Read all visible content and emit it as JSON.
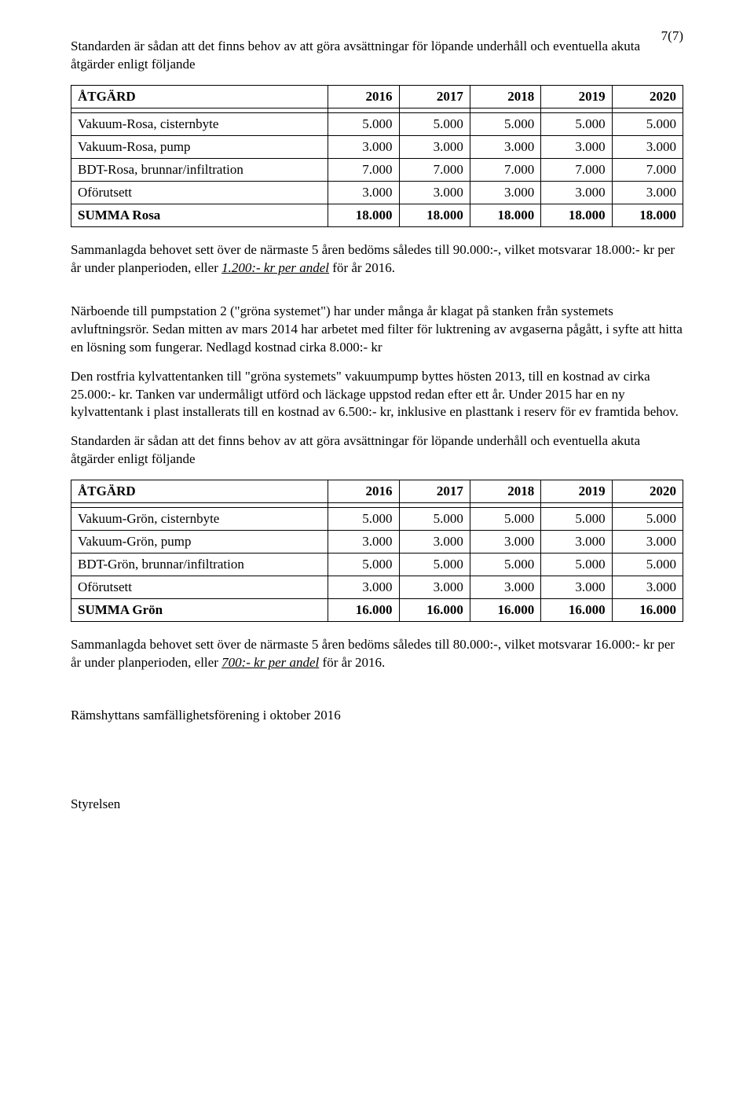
{
  "page_number": "7(7)",
  "intro1": "Standarden är sådan att det finns behov av att göra avsättningar för löpande underhåll och eventuella akuta åtgärder enligt följande",
  "table1": {
    "header_label": "ÅTGÄRD",
    "years": [
      "2016",
      "2017",
      "2018",
      "2019",
      "2020"
    ],
    "rows": [
      {
        "label": "Vakuum-Rosa, cisternbyte",
        "vals": [
          "5.000",
          "5.000",
          "5.000",
          "5.000",
          "5.000"
        ]
      },
      {
        "label": "Vakuum-Rosa, pump",
        "vals": [
          "3.000",
          "3.000",
          "3.000",
          "3.000",
          "3.000"
        ]
      },
      {
        "label": "BDT-Rosa, brunnar/infiltration",
        "vals": [
          "7.000",
          "7.000",
          "7.000",
          "7.000",
          "7.000"
        ]
      },
      {
        "label": "Oförutsett",
        "vals": [
          "3.000",
          "3.000",
          "3.000",
          "3.000",
          "3.000"
        ]
      }
    ],
    "sum_label": "SUMMA Rosa",
    "sum_vals": [
      "18.000",
      "18.000",
      "18.000",
      "18.000",
      "18.000"
    ]
  },
  "summary1_a": "Sammanlagda behovet sett över de närmaste 5 åren bedöms således till 90.000:-, vilket motsvarar 18.000:- kr per år under planperioden, eller ",
  "summary1_u": "1.200:- kr per andel",
  "summary1_b": " för år 2016.",
  "para_narboende": "Närboende till pumpstation 2  (\"gröna systemet\") har under många år klagat på stanken från systemets avluftningsrör. Sedan mitten av mars 2014 har arbetet med filter för luktrening av avgaserna pågått, i syfte att hitta en lösning som fungerar. Nedlagd kostnad cirka  8.000:- kr",
  "para_rost": "Den rostfria kylvattentanken till \"gröna systemets\" vakuumpump byttes hösten 2013, till en kostnad av cirka 25.000:- kr. Tanken var undermåligt utförd och läckage uppstod redan efter ett år. Under 2015 har en ny kylvattentank i plast installerats till en kostnad av 6.500:- kr, inklusive en plasttank i reserv för ev framtida behov.",
  "intro2": "Standarden är sådan att det finns behov av att göra avsättningar för löpande underhåll och eventuella akuta åtgärder enligt följande",
  "table2": {
    "header_label": "ÅTGÄRD",
    "years": [
      "2016",
      "2017",
      "2018",
      "2019",
      "2020"
    ],
    "rows": [
      {
        "label": "Vakuum-Grön, cisternbyte",
        "vals": [
          "5.000",
          "5.000",
          "5.000",
          "5.000",
          "5.000"
        ]
      },
      {
        "label": "Vakuum-Grön, pump",
        "vals": [
          "3.000",
          "3.000",
          "3.000",
          "3.000",
          "3.000"
        ]
      },
      {
        "label": "BDT-Grön, brunnar/infiltration",
        "vals": [
          "5.000",
          "5.000",
          "5.000",
          "5.000",
          "5.000"
        ]
      },
      {
        "label": "Oförutsett",
        "vals": [
          "3.000",
          "3.000",
          "3.000",
          "3.000",
          "3.000"
        ]
      }
    ],
    "sum_label": "SUMMA Grön",
    "sum_vals": [
      "16.000",
      "16.000",
      "16.000",
      "16.000",
      "16.000"
    ]
  },
  "summary2_a": "Sammanlagda behovet sett över de närmaste 5 åren bedöms således till 80.000:-, vilket motsvarar 16.000:- kr per år under planperioden, eller ",
  "summary2_u": "700:- kr per andel",
  "summary2_b": " för år 2016.",
  "footer": "Rämshyttans samfällighetsförening  i oktober 2016",
  "signature": "Styrelsen"
}
